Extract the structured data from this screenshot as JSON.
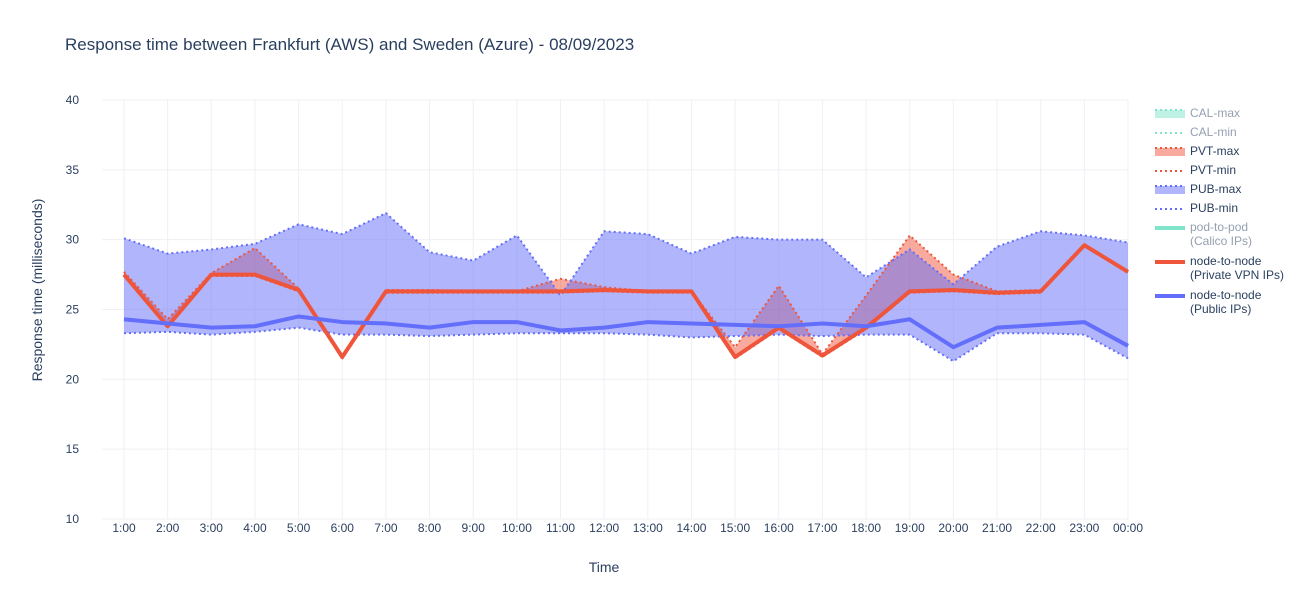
{
  "chart_data": {
    "type": "line",
    "title": "Response time between Frankfurt (AWS) and Sweden (Azure)   -   08/09/2023",
    "x_label": "Time",
    "y_label": "Response time (milliseconds)",
    "categories": [
      "1:00",
      "2:00",
      "3:00",
      "4:00",
      "5:00",
      "6:00",
      "7:00",
      "8:00",
      "9:00",
      "10:00",
      "11:00",
      "12:00",
      "13:00",
      "14:00",
      "15:00",
      "16:00",
      "17:00",
      "18:00",
      "19:00",
      "20:00",
      "21:00",
      "22:00",
      "23:00",
      "00:00"
    ],
    "ylim": [
      10,
      40
    ],
    "yticks": [
      10,
      15,
      20,
      25,
      30,
      35,
      40
    ],
    "grid": true,
    "legend": "right",
    "series": [
      {
        "name": "CAL-max",
        "color": "#00cc96",
        "dash": "dot",
        "fill": true,
        "visible": "legendonly"
      },
      {
        "name": "CAL-min",
        "color": "#00cc96",
        "dash": "dot",
        "visible": "legendonly"
      },
      {
        "name": "PVT-max",
        "color": "#ef553b",
        "dash": "dot",
        "fill": true,
        "values": [
          27.7,
          24.3,
          27.6,
          29.4,
          26.5,
          21.6,
          26.4,
          26.4,
          26.3,
          26.3,
          27.2,
          26.6,
          26.3,
          26.3,
          22.3,
          26.7,
          21.8,
          26.0,
          30.3,
          27.5,
          26.3,
          26.4,
          29.7,
          27.7
        ]
      },
      {
        "name": "PVT-min",
        "color": "#ef553b",
        "dash": "dot",
        "values": [
          27.4,
          23.7,
          27.4,
          27.4,
          26.3,
          21.5,
          26.2,
          26.2,
          26.2,
          26.2,
          26.2,
          26.3,
          26.2,
          26.2,
          21.5,
          23.6,
          21.6,
          23.6,
          26.2,
          26.3,
          26.1,
          26.2,
          29.6,
          27.6
        ]
      },
      {
        "name": "PUB-max",
        "color": "#636efa",
        "dash": "dot",
        "fill": true,
        "values": [
          30.1,
          29.0,
          29.3,
          29.7,
          31.1,
          30.4,
          31.9,
          29.1,
          28.5,
          30.3,
          26.0,
          30.6,
          30.4,
          29.0,
          30.2,
          30.0,
          30.0,
          27.3,
          29.3,
          26.8,
          29.5,
          30.6,
          30.3,
          29.8
        ]
      },
      {
        "name": "PUB-min",
        "color": "#636efa",
        "dash": "dot",
        "values": [
          23.3,
          23.4,
          23.2,
          23.4,
          23.7,
          23.2,
          23.2,
          23.1,
          23.2,
          23.3,
          23.3,
          23.3,
          23.2,
          23.0,
          23.1,
          23.2,
          23.1,
          23.2,
          23.2,
          21.3,
          23.3,
          23.3,
          23.2,
          21.5
        ]
      },
      {
        "name": "pod-to-pod\n(Calico IPs)",
        "color": "#00cc96",
        "dash": "solid",
        "visible": "legendonly"
      },
      {
        "name": "node-to-node\n(Private VPN IPs)",
        "color": "#ef553b",
        "dash": "solid",
        "values": [
          27.5,
          23.8,
          27.5,
          27.5,
          26.4,
          21.6,
          26.3,
          26.3,
          26.3,
          26.3,
          26.3,
          26.4,
          26.3,
          26.3,
          21.6,
          23.7,
          21.7,
          23.7,
          26.3,
          26.4,
          26.2,
          26.3,
          29.6,
          27.7
        ]
      },
      {
        "name": "node-to-node\n(Public IPs)",
        "color": "#636efa",
        "dash": "solid",
        "values": [
          24.3,
          24.0,
          23.7,
          23.8,
          24.5,
          24.1,
          24.0,
          23.7,
          24.1,
          24.1,
          23.5,
          23.7,
          24.1,
          24.0,
          23.9,
          23.8,
          24.0,
          23.8,
          24.3,
          22.3,
          23.7,
          23.9,
          24.1,
          22.4
        ]
      }
    ]
  }
}
